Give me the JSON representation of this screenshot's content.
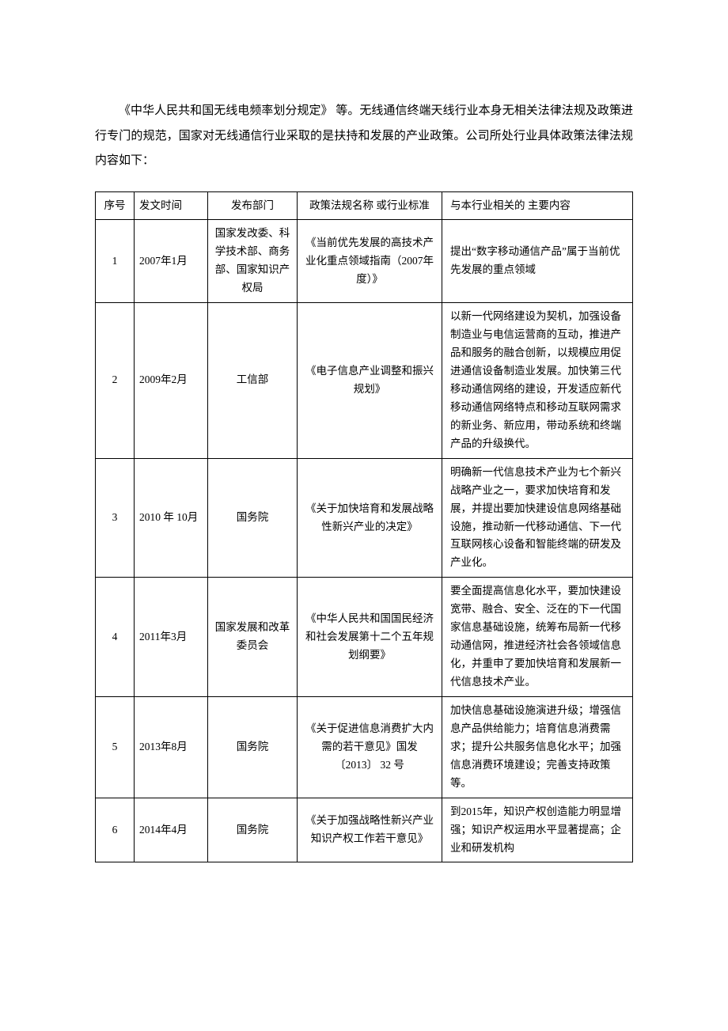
{
  "intro": "《中华人民共和国无线电频率划分规定》 等。无线通信终端天线行业本身无相关法律法规及政策进行专门的规范，国家对无线通信行业采取的是扶持和发展的产业政策。公司所处行业具体政策法律法规内容如下：",
  "table": {
    "headers": {
      "idx": "序号",
      "date": "发文时间",
      "dept": "发布部门",
      "name": "政策法规名称 或行业标准",
      "desc": "与本行业相关的 主要内容"
    },
    "rows": [
      {
        "idx": "1",
        "date": "2007年1月",
        "dept": "国家发改委、科学技术部、商务部、国家知识产权局",
        "name": "《当前优先发展的高技术产业化重点领域指南（2007年度）》",
        "desc": "提出“数字移动通信产品”属于当前优先发展的重点领域"
      },
      {
        "idx": "2",
        "date": "2009年2月",
        "dept": "工信部",
        "name": "《电子信息产业调整和振兴规划》",
        "desc": "以新一代网络建设为契机，加强设备制造业与电信运营商的互动，推进产品和服务的融合创新，以规模应用促进通信设备制造业发展。加快第三代移动通信网络的建设，开发适应新代移动通信网络特点和移动互联网需求的新业务、新应用，带动系统和终端产品的升级换代。"
      },
      {
        "idx": "3",
        "date": "2010 年 10月",
        "dept": "国务院",
        "name": "《关于加快培育和发展战略性新兴产业的决定》",
        "desc": "明确新一代信息技术产业为七个新兴战略产业之一，要求加快培育和发展，并提出要加快建设信息网络基础设施，推动新一代移动通信、下一代互联网核心设备和智能终端的研发及产业化。"
      },
      {
        "idx": "4",
        "date": "2011年3月",
        "dept": "国家发展和改革委员会",
        "name": "《中华人民共和国国民经济和社会发展第十二个五年规划纲要》",
        "desc": "要全面提高信息化水平，要加快建设宽带、融合、安全、泛在的下一代国家信息基础设施，统筹布局新一代移动通信网，推进经济社会各领域信息化，并重申了要加快培育和发展新一代信息技术产业。"
      },
      {
        "idx": "5",
        "date": "2013年8月",
        "dept": "国务院",
        "name": "《关于促进信息消费扩大内需的若干意见》国发〔2013〕 32 号",
        "desc": "加快信息基础设施演进升级；增强信息产品供给能力；培育信息消费需求；提升公共服务信息化水平；加强信息消费环境建设；完善支持政策等。"
      },
      {
        "idx": "6",
        "date": "2014年4月",
        "dept": "国务院",
        "name": "《关于加强战略性新兴产业知识产权工作若干意见》",
        "desc": "到2015年，知识产权创造能力明显增强；知识产权运用水平显著提高；企业和研发机构"
      }
    ]
  }
}
